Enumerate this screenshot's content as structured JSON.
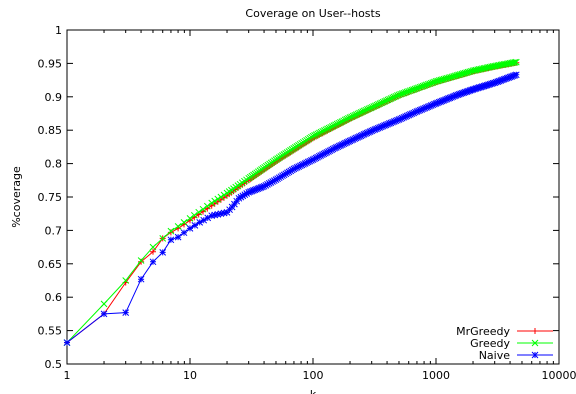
{
  "chart_data": {
    "type": "line",
    "title": "Coverage on User--hosts",
    "xlabel": "k",
    "ylabel": "%coverage",
    "xscale": "log",
    "xlim": [
      1,
      10000
    ],
    "ylim": [
      0.5,
      1
    ],
    "xticks": [
      1,
      10,
      100,
      1000,
      10000
    ],
    "xtick_labels": [
      "1",
      "10",
      "100",
      "1000",
      "10000"
    ],
    "yticks": [
      0.5,
      0.55,
      0.6,
      0.65,
      0.7,
      0.75,
      0.8,
      0.85,
      0.9,
      0.95,
      1
    ],
    "ytick_labels": [
      "0.5",
      "0.55",
      "0.6",
      "0.65",
      "0.7",
      "0.75",
      "0.8",
      "0.85",
      "0.9",
      "0.95",
      "1"
    ],
    "grid": false,
    "legend_position": "bottom-right",
    "series": [
      {
        "name": "MrGreedy",
        "color": "#ff0000",
        "marker": "plus",
        "x": [
          1,
          2,
          3,
          4,
          5,
          6,
          7,
          8,
          10,
          15,
          20,
          30,
          50,
          100,
          200,
          500,
          1000,
          2000,
          3000,
          4500
        ],
        "y": [
          0.532,
          0.575,
          0.622,
          0.653,
          0.668,
          0.688,
          0.697,
          0.703,
          0.715,
          0.737,
          0.752,
          0.775,
          0.803,
          0.838,
          0.867,
          0.902,
          0.922,
          0.938,
          0.945,
          0.951
        ]
      },
      {
        "name": "Greedy",
        "color": "#00ff00",
        "marker": "cross",
        "x": [
          1,
          2,
          3,
          4,
          5,
          6,
          7,
          8,
          10,
          15,
          20,
          30,
          50,
          100,
          200,
          500,
          1000,
          2000,
          3000,
          4500
        ],
        "y": [
          0.532,
          0.59,
          0.625,
          0.655,
          0.675,
          0.688,
          0.699,
          0.706,
          0.718,
          0.741,
          0.756,
          0.778,
          0.806,
          0.841,
          0.869,
          0.903,
          0.923,
          0.939,
          0.946,
          0.952
        ]
      },
      {
        "name": "Naive",
        "color": "#0000ff",
        "marker": "star",
        "x": [
          1,
          2,
          3,
          4,
          5,
          6,
          7,
          8,
          10,
          12,
          15,
          20,
          22,
          25,
          30,
          40,
          50,
          70,
          100,
          150,
          200,
          300,
          500,
          700,
          1000,
          1500,
          2000,
          3000,
          4500
        ],
        "y": [
          0.532,
          0.575,
          0.577,
          0.627,
          0.653,
          0.667,
          0.686,
          0.69,
          0.703,
          0.712,
          0.722,
          0.727,
          0.735,
          0.748,
          0.757,
          0.766,
          0.776,
          0.792,
          0.806,
          0.823,
          0.834,
          0.849,
          0.866,
          0.878,
          0.89,
          0.903,
          0.911,
          0.921,
          0.933
        ]
      }
    ]
  }
}
